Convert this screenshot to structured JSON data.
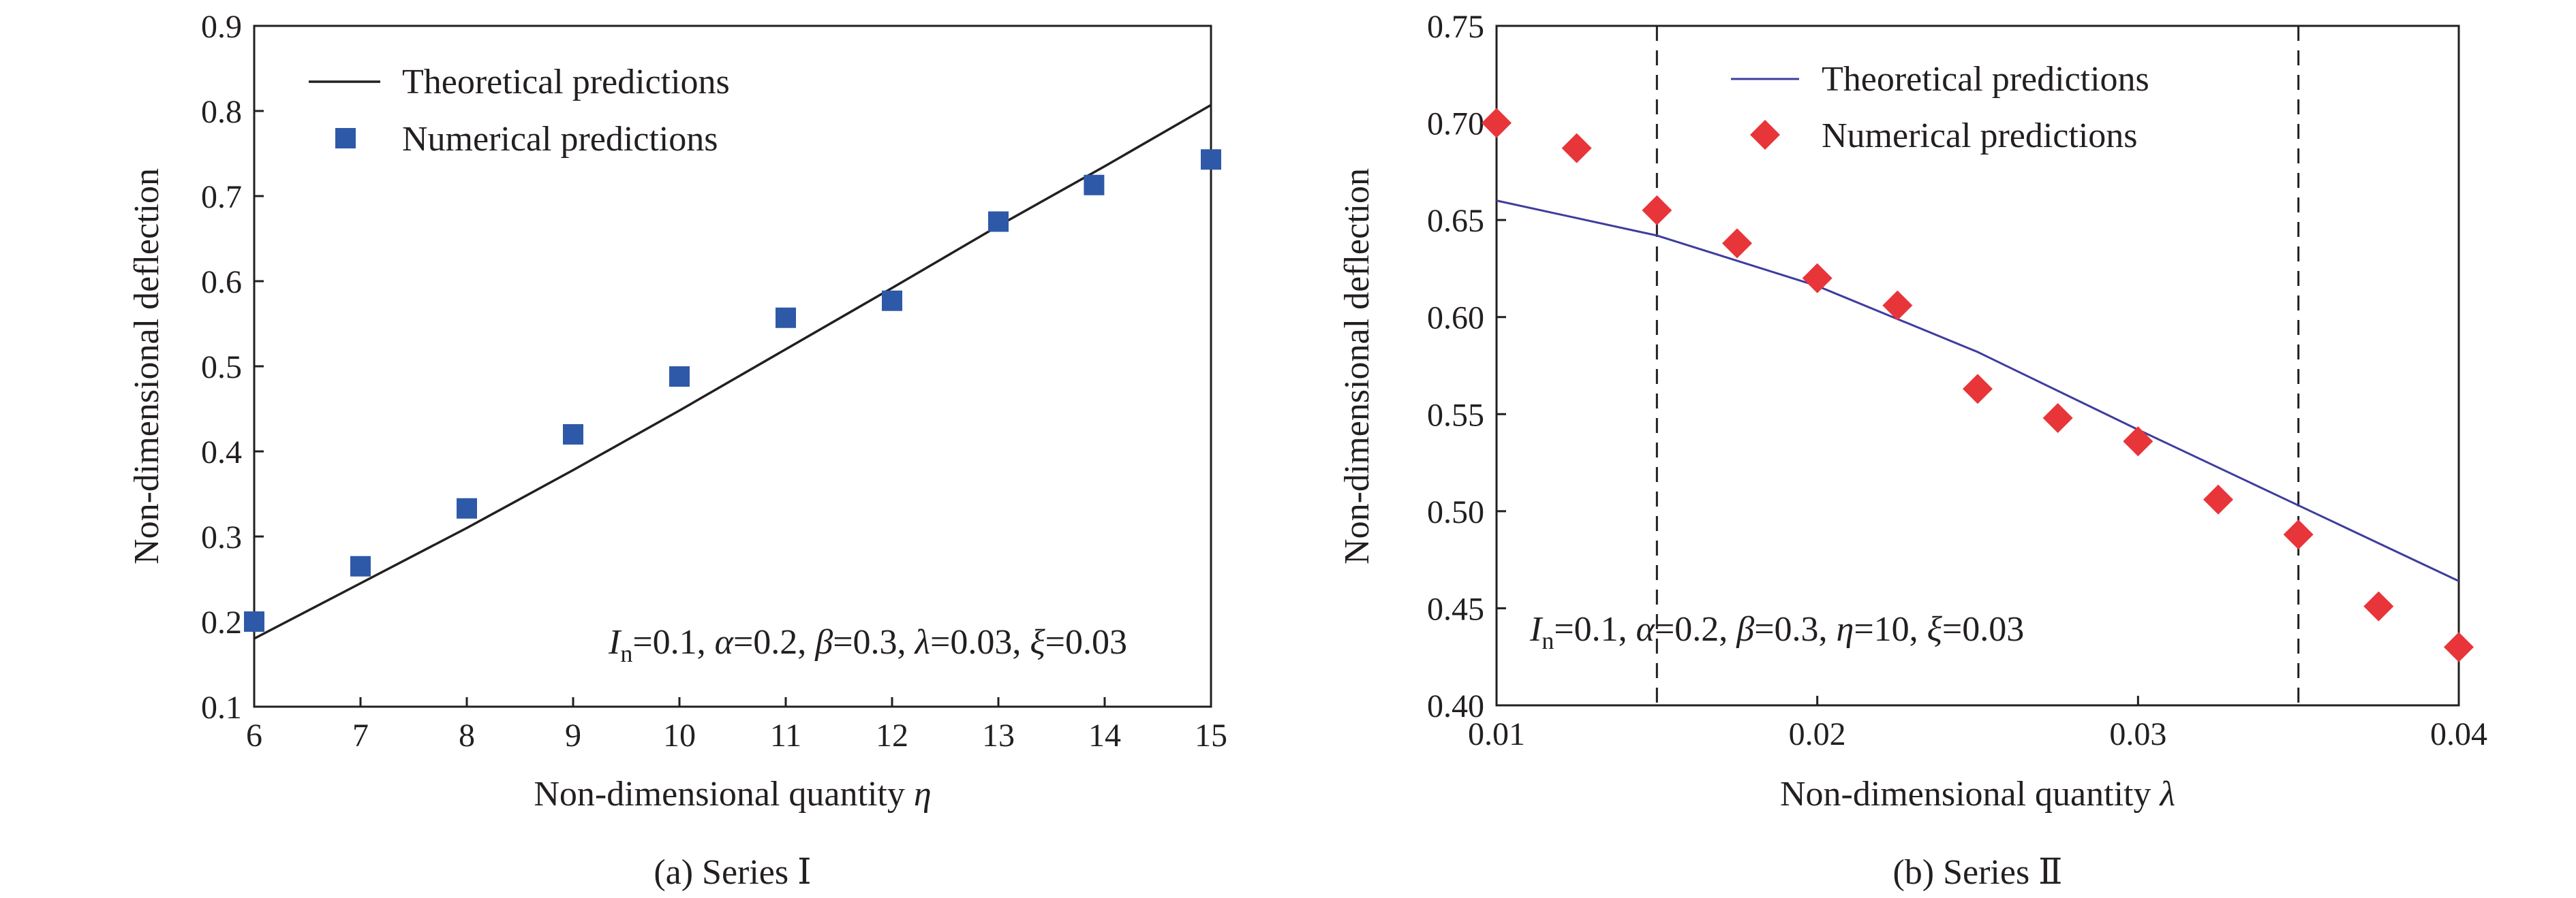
{
  "chart_data": [
    {
      "type": "line+scatter",
      "caption": "(a) Series Ⅰ",
      "xlabel": "Non-dimensional quantity η",
      "ylabel": "Non-dimensional deflection",
      "xlim": [
        6,
        15
      ],
      "ylim": [
        0.1,
        0.9
      ],
      "xticks": [
        "6",
        "7",
        "8",
        "9",
        "10",
        "11",
        "12",
        "13",
        "14",
        "15"
      ],
      "yticks": [
        "0.1",
        "0.2",
        "0.3",
        "0.4",
        "0.5",
        "0.6",
        "0.7",
        "0.8",
        "0.9"
      ],
      "legend_position": "top-left",
      "annotation": "In=0.1, α=0.2, β=0.3, λ=0.03, ξ=0.03",
      "series": [
        {
          "name": "Theoretical predictions",
          "kind": "line",
          "color": "#231f20",
          "x": [
            6,
            7,
            8,
            9,
            10,
            11,
            12,
            13,
            14,
            15
          ],
          "y": [
            0.18,
            0.245,
            0.31,
            0.378,
            0.448,
            0.52,
            0.592,
            0.665,
            0.735,
            0.807
          ]
        },
        {
          "name": "Numerical predictions",
          "kind": "scatter",
          "marker": "square",
          "color": "#2e59a8",
          "x": [
            6,
            7,
            8,
            9,
            10,
            11,
            12,
            13,
            13.9,
            15
          ],
          "y": [
            0.2,
            0.265,
            0.333,
            0.42,
            0.488,
            0.557,
            0.577,
            0.67,
            0.713,
            0.743
          ]
        }
      ]
    },
    {
      "type": "line+scatter",
      "caption": "(b) Series Ⅱ",
      "xlabel": "Non-dimensional quantity λ",
      "ylabel": "Non-dimensional deflection",
      "xlim": [
        0.01,
        0.04
      ],
      "ylim": [
        0.4,
        0.75
      ],
      "xticks": [
        "0.01",
        "0.02",
        "0.03",
        "0.04"
      ],
      "yticks": [
        "0.40",
        "0.45",
        "0.50",
        "0.55",
        "0.60",
        "0.65",
        "0.70",
        "0.75"
      ],
      "vlines": [
        0.015,
        0.035
      ],
      "legend_position": "top-center",
      "annotation": "In=0.1, α=0.2, β=0.3, η=10, ξ=0.03",
      "series": [
        {
          "name": "Theoretical predictions",
          "kind": "line",
          "color": "#3d3d9e",
          "x": [
            0.01,
            0.015,
            0.02,
            0.025,
            0.03,
            0.035,
            0.04
          ],
          "y": [
            0.66,
            0.642,
            0.616,
            0.582,
            0.542,
            0.503,
            0.464
          ]
        },
        {
          "name": "Numerical predictions",
          "kind": "scatter",
          "marker": "diamond",
          "color": "#e8353a",
          "x": [
            0.01,
            0.0125,
            0.015,
            0.0175,
            0.02,
            0.0225,
            0.025,
            0.0275,
            0.03,
            0.0325,
            0.035,
            0.0375,
            0.04
          ],
          "y": [
            0.7,
            0.687,
            0.655,
            0.638,
            0.62,
            0.606,
            0.563,
            0.548,
            0.536,
            0.506,
            0.488,
            0.451,
            0.43
          ]
        }
      ]
    }
  ]
}
